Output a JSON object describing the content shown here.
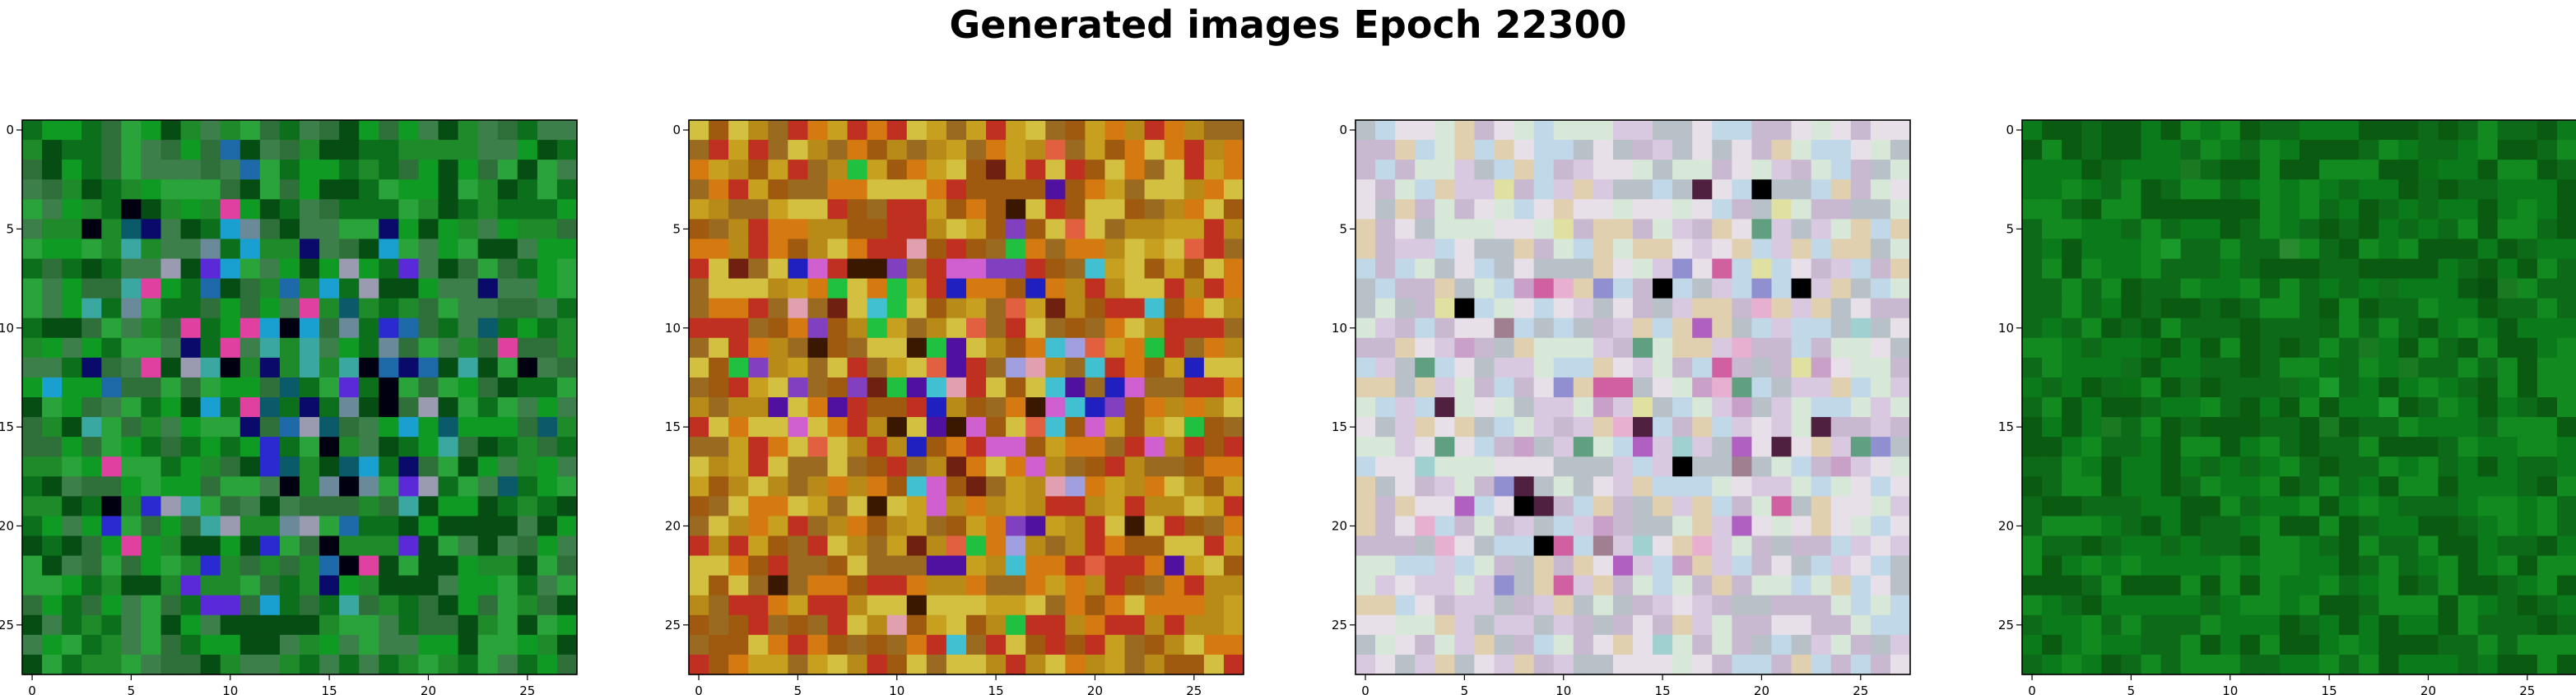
{
  "chart_data": {
    "type": "heatmap",
    "title": "Generated images Epoch 22300",
    "grid": false,
    "image_size": 28,
    "xlim": [
      -0.5,
      27.5
    ],
    "ylim": [
      27.5,
      -0.5
    ],
    "xticks": [
      0,
      5,
      10,
      15,
      20,
      25
    ],
    "yticks": [
      0,
      5,
      10,
      15,
      20,
      25
    ],
    "xtick_labels": [
      "0",
      "5",
      "10",
      "15",
      "20",
      "25"
    ],
    "ytick_labels": [
      "0",
      "5",
      "10",
      "15",
      "20",
      "25"
    ],
    "panels": [
      {
        "palette": [
          "#1f8a2a",
          "#0b6f1c",
          "#0f9a24",
          "#2e6f3a",
          "#064d14",
          "#29a33a",
          "#3d7f4a",
          "#000010",
          "#0a0a6a",
          "#2a2ad0",
          "#5a2ad8",
          "#1e6aa8",
          "#3aa8a0",
          "#6a8a9a",
          "#9a9ab0",
          "#0a5a6a",
          "#e040a0",
          "#1aa0d0"
        ],
        "center_weight": 0.75
      },
      {
        "palette": [
          "#c8a020",
          "#b88a18",
          "#d47a10",
          "#a05a10",
          "#9a6a20",
          "#d4c040",
          "#c03020",
          "#e06040",
          "#702010",
          "#3a1800",
          "#5010a0",
          "#2020c0",
          "#8040c0",
          "#d060d0",
          "#e0a0b0",
          "#20c040",
          "#40c0d0",
          "#a0a0e0"
        ],
        "center_weight": 0.7
      },
      {
        "palette": [
          "#d8c8e0",
          "#c8b8d0",
          "#e8e0e8",
          "#b8c0c8",
          "#c0d8e8",
          "#d8e8d8",
          "#e0d0b0",
          "#c8a0c8",
          "#e8b0d0",
          "#a0d0d0",
          "#9090d0",
          "#b060c0",
          "#d060a0",
          "#502040",
          "#000000",
          "#60a080",
          "#e0e0a0",
          "#a08090"
        ],
        "center_weight": 0.5
      },
      {
        "palette": [
          "#0a7a1a",
          "#0d6a18",
          "#128a20",
          "#0a5a12",
          "#1a9a2a",
          "#075010",
          "#14801f",
          "#0f6f1a",
          "#2a8a30",
          "#0b6514",
          "#1a7a22",
          "#0a7016"
        ],
        "center_weight": 0.1
      }
    ]
  }
}
